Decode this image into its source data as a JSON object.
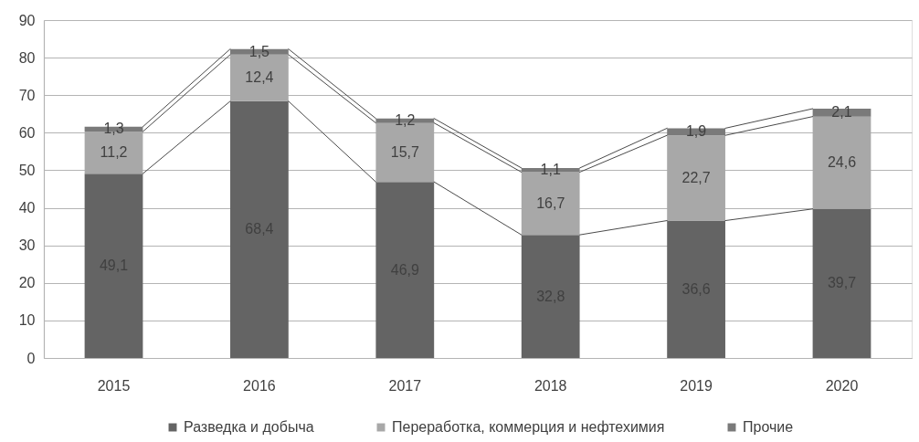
{
  "chart_data": {
    "type": "bar",
    "stacked": true,
    "categories": [
      "2015",
      "2016",
      "2017",
      "2018",
      "2019",
      "2020"
    ],
    "series": [
      {
        "name": "Разведка и добыча",
        "color": "#646464",
        "values": [
          49.1,
          68.4,
          46.9,
          32.8,
          36.6,
          39.7
        ],
        "value_labels": [
          "49,1",
          "68,4",
          "46,9",
          "32,8",
          "36,6",
          "39,7"
        ]
      },
      {
        "name": "Переработка, коммерция и нефтехимия",
        "color": "#a8a8a8",
        "values": [
          11.2,
          12.4,
          15.7,
          16.7,
          22.7,
          24.6
        ],
        "value_labels": [
          "11,2",
          "12,4",
          "15,7",
          "16,7",
          "22,7",
          "24,6"
        ]
      },
      {
        "name": "Прочие",
        "color": "#7a7a7a",
        "values": [
          1.3,
          1.5,
          1.2,
          1.1,
          1.9,
          2.1
        ],
        "value_labels": [
          "1,3",
          "1,5",
          "1,2",
          "1,1",
          "1,9",
          "2,1"
        ]
      }
    ],
    "ylim": [
      0,
      90
    ],
    "yticks": [
      0,
      10,
      20,
      30,
      40,
      50,
      60,
      70,
      80,
      90
    ],
    "grid": "y",
    "legend": "bottom"
  }
}
